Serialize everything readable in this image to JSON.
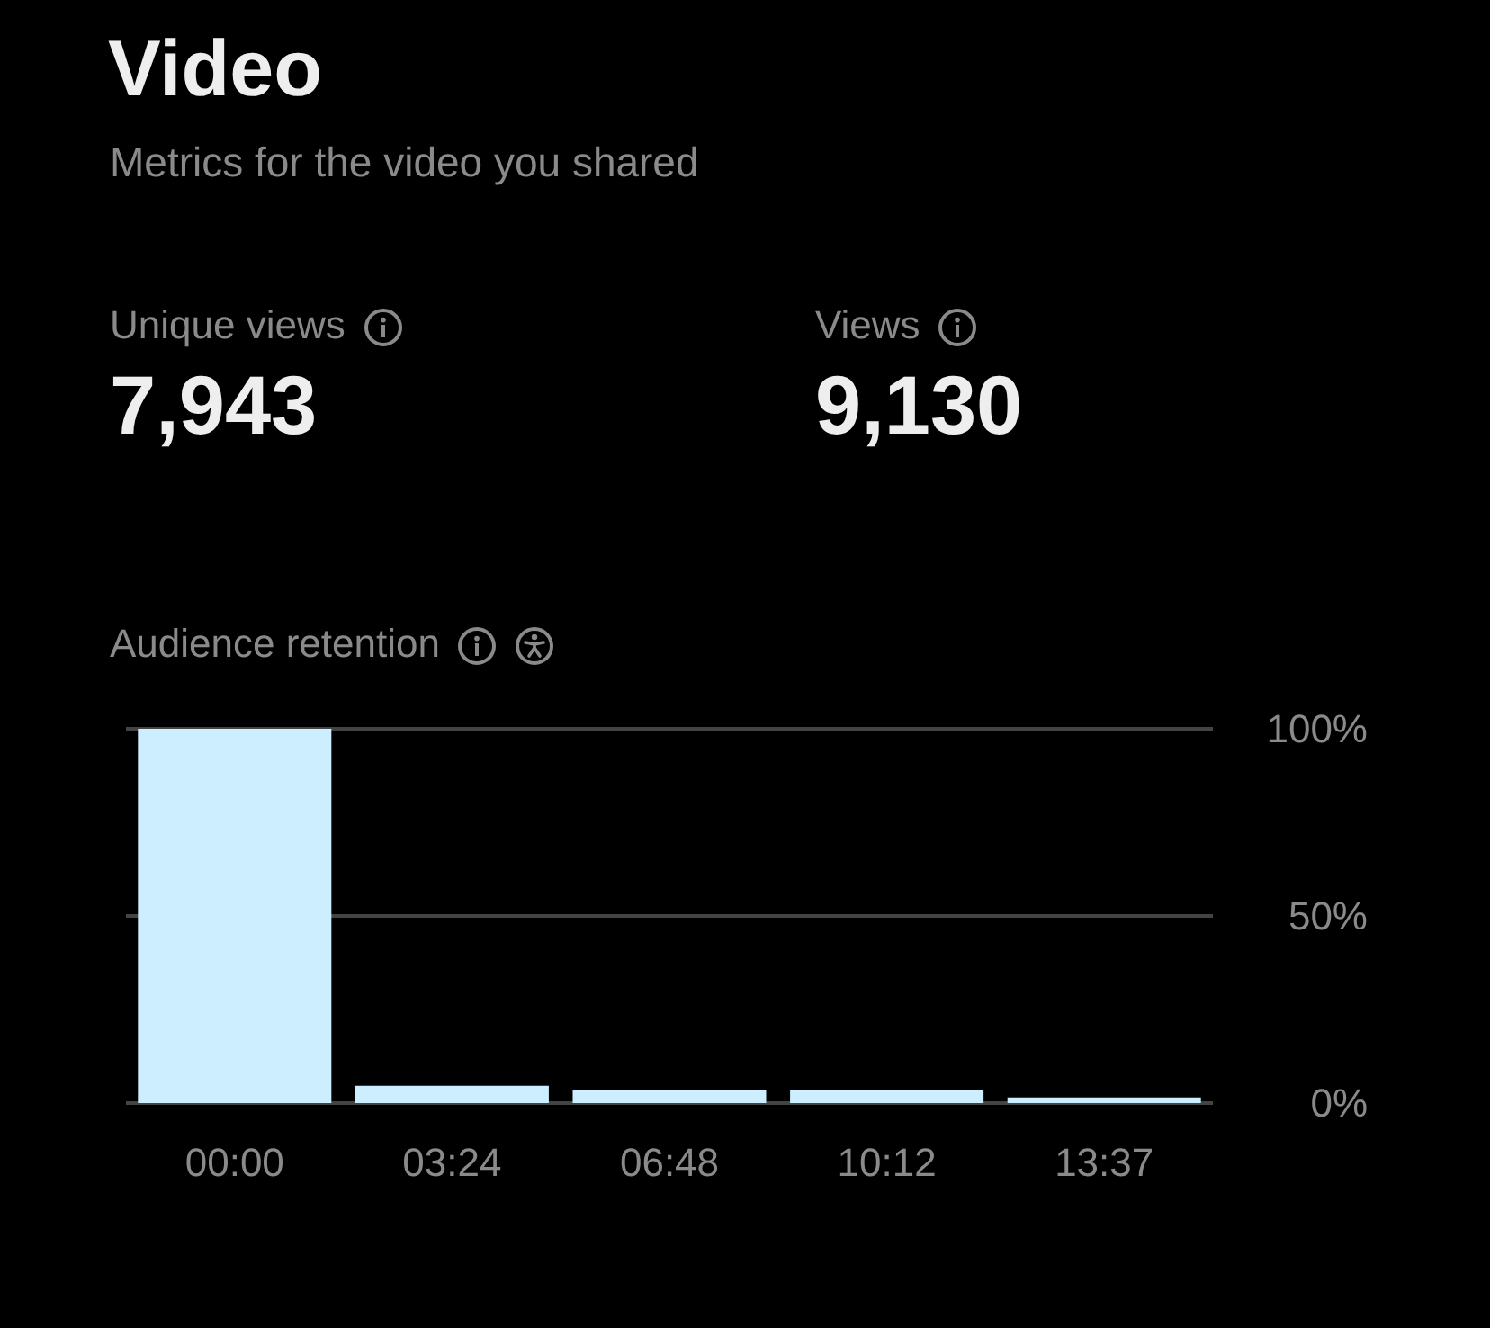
{
  "chart_data": {
    "type": "bar",
    "title": "Video",
    "subtitle": "Metrics for the video you shared",
    "annotations": [
      "Unique views",
      "7,943",
      "Views",
      "9,130",
      "Audience retention"
    ],
    "categories": [
      "00:00",
      "03:24",
      "06:48",
      "10:12",
      "13:37"
    ],
    "values": [
      100,
      4.6,
      3.5,
      3.5,
      1.5
    ],
    "color": "#cdeefe",
    "ylim": [
      0,
      100
    ],
    "yticks": [
      {
        "value": 0,
        "label": "0%"
      },
      {
        "value": 50,
        "label": "50%"
      },
      {
        "value": 100,
        "label": "100%"
      }
    ],
    "grid": "y"
  }
}
